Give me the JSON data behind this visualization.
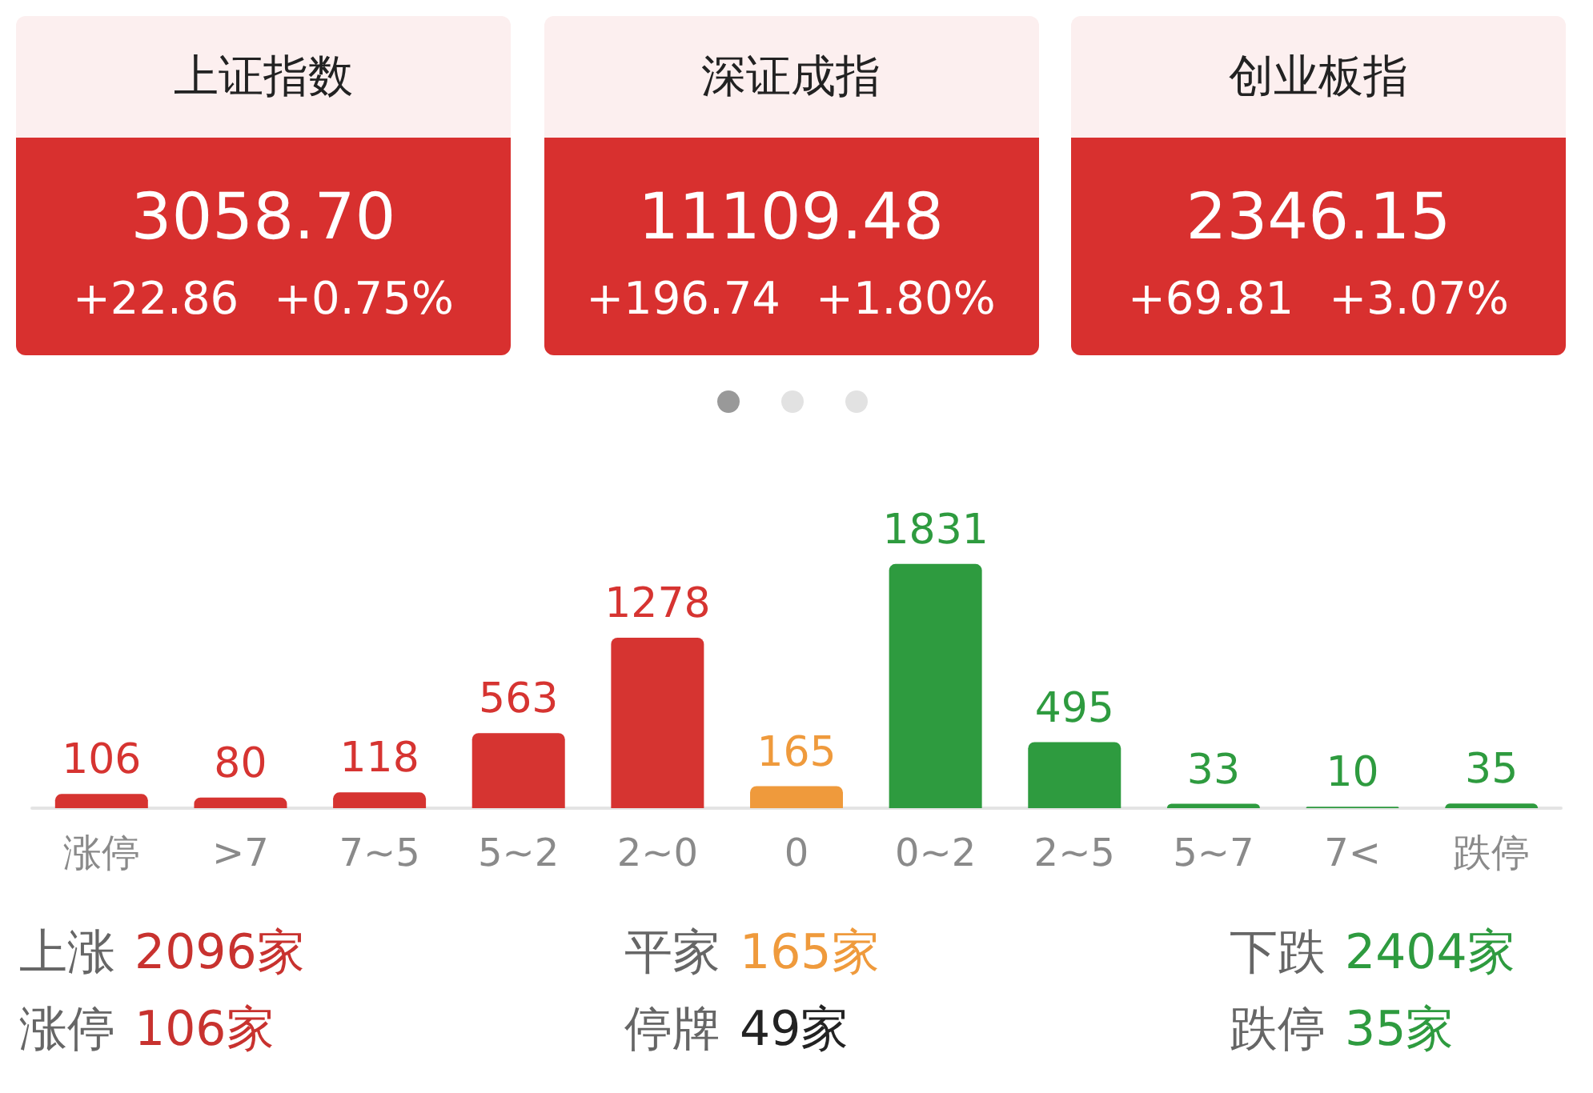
{
  "chart_data": [
    {
      "type": "other",
      "title": "上证指数",
      "color": "#d8302f",
      "annotations": [
        "3058.70",
        "+22.86",
        "+0.75%"
      ]
    },
    {
      "type": "other",
      "title": "深证成指",
      "color": "#d8302f",
      "annotations": [
        "11109.48",
        "+196.74",
        "+1.80%"
      ]
    },
    {
      "type": "other",
      "title": "创业板指",
      "color": "#d8302f",
      "annotations": [
        "2346.15",
        "+69.81",
        "+3.07%"
      ]
    },
    {
      "type": "bar",
      "categories": [
        "涨停",
        ">7",
        "7~5",
        "5~2",
        "2~0",
        "0",
        "0~2",
        "2~5",
        "5~7",
        "7<",
        "跌停"
      ],
      "values": [
        106,
        80,
        118,
        563,
        1278,
        165,
        1831,
        495,
        33,
        10,
        35
      ],
      "colors": [
        "#d63431",
        "#d63431",
        "#d63431",
        "#d63431",
        "#d63431",
        "#ef9a3c",
        "#2e9b3f",
        "#2e9b3f",
        "#2e9b3f",
        "#2e9b3f",
        "#2e9b3f"
      ],
      "data_labels": true
    },
    {
      "type": "other",
      "categories": [
        "上涨",
        "平家",
        "下跌",
        "涨停",
        "停牌",
        "跌停"
      ],
      "value_labels": [
        "2096家",
        "165家",
        "2404家",
        "106家",
        "49家",
        "35家"
      ],
      "colors": [
        "#c8322f",
        "#ef9a3c",
        "#2e9b3f",
        "#c8322f",
        "#222222",
        "#2e9b3f"
      ]
    }
  ]
}
